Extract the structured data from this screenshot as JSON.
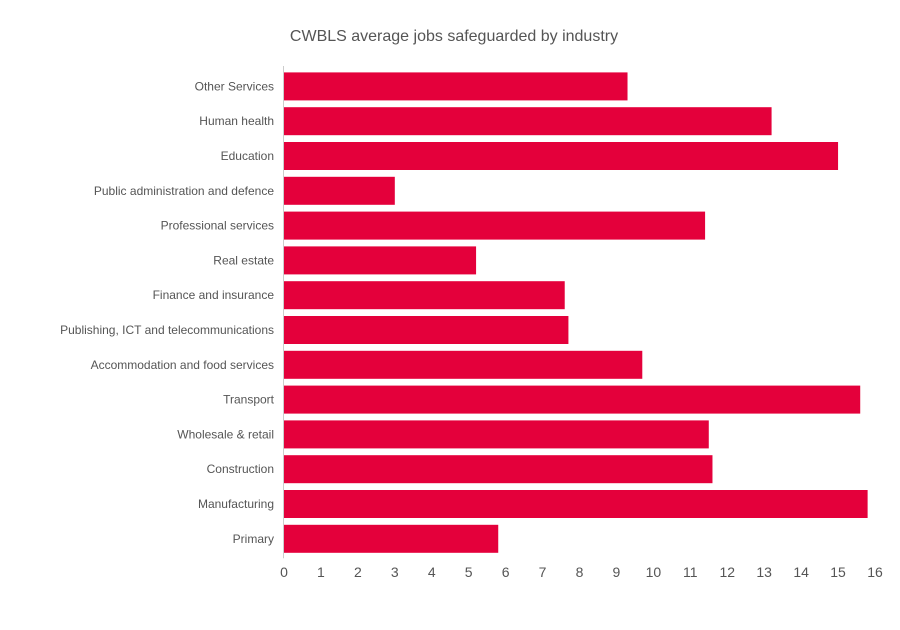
{
  "chart_data": {
    "type": "bar",
    "orientation": "horizontal",
    "title": "CWBLS average jobs safeguarded by industry",
    "xlabel": "",
    "ylabel": "",
    "categories": [
      "Other Services",
      "Human health",
      "Education",
      "Public administration and defence",
      "Professional services",
      "Real estate",
      "Finance and insurance",
      "Publishing, ICT and telecommunications",
      "Accommodation and food services",
      "Transport",
      "Wholesale & retail",
      "Construction",
      "Manufacturing",
      "Primary"
    ],
    "values": [
      9.3,
      13.2,
      15.0,
      3.0,
      11.4,
      5.2,
      7.6,
      7.7,
      9.7,
      15.6,
      11.5,
      11.6,
      15.8,
      5.8
    ],
    "xlim": [
      0,
      16
    ],
    "xticks": [
      "0",
      "1",
      "2",
      "3",
      "4",
      "5",
      "6",
      "7",
      "8",
      "9",
      "10",
      "11",
      "12",
      "13",
      "14",
      "15",
      "16"
    ],
    "grid": false,
    "legend": "none",
    "colors": {
      "bar": "#e4003b",
      "text": "#555555",
      "axis": "#cccccc"
    }
  }
}
